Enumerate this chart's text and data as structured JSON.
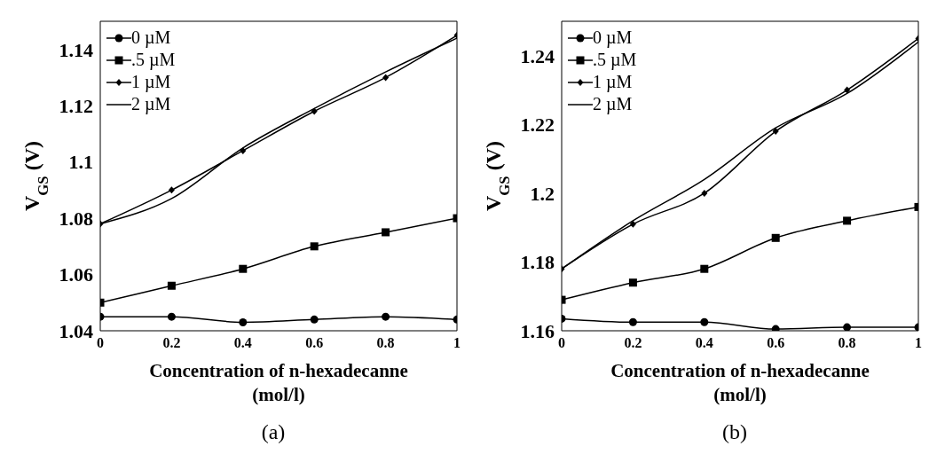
{
  "chart_data": [
    {
      "type": "line",
      "xlabel": "Concentration of n-hexadecanne (mol/l)",
      "ylabel": "V$_{GS}$ (V)",
      "annotations": [
        "(a)"
      ],
      "x": [
        0,
        0.2,
        0.4,
        0.6,
        0.8,
        1
      ],
      "xlim": [
        0,
        1
      ],
      "xticks": [
        0,
        0.2,
        0.4,
        0.6,
        0.8,
        1
      ],
      "ylim": [
        1.04,
        1.15
      ],
      "yticks": [
        1.04,
        1.06,
        1.08,
        {
          "value": 1.1,
          "label": "1.1"
        },
        1.12,
        1.14
      ],
      "grid": false,
      "legend": "top left",
      "line_style": "solid",
      "series": [
        {
          "name": "0 µM",
          "color": "#000000",
          "marker": "circle",
          "values": [
            1.045,
            1.045,
            1.043,
            1.044,
            1.045,
            1.044
          ]
        },
        {
          "name": ".5 µM",
          "color": "#000000",
          "marker": "square",
          "values": [
            1.05,
            1.056,
            1.062,
            1.07,
            1.075,
            1.08
          ]
        },
        {
          "name": "1 µM",
          "color": "#000000",
          "marker": "diamond",
          "values": [
            1.078,
            1.09,
            1.104,
            1.118,
            1.13,
            1.145
          ]
        },
        {
          "name": "2 µM",
          "color": "#000000",
          "marker": "none",
          "values": [
            1.078,
            1.087,
            1.105,
            1.119,
            1.132,
            1.144
          ]
        }
      ]
    },
    {
      "type": "line",
      "xlabel": "Concentration of n-hexadecanne (mol/l)",
      "ylabel": "V$_{GS}$ (V)",
      "annotations": [
        "(b)"
      ],
      "x": [
        0,
        0.2,
        0.4,
        0.6,
        0.8,
        1
      ],
      "xlim": [
        0,
        1
      ],
      "xticks": [
        0,
        0.2,
        0.4,
        0.6,
        0.8,
        1
      ],
      "ylim": [
        1.16,
        1.25
      ],
      "yticks": [
        1.16,
        1.18,
        {
          "value": 1.2,
          "label": "1.2"
        },
        1.22,
        1.24
      ],
      "grid": false,
      "legend": "top left",
      "line_style": "solid",
      "series": [
        {
          "name": "0 µM",
          "color": "#000000",
          "marker": "circle",
          "values": [
            1.1635,
            1.1625,
            1.1625,
            1.1605,
            1.161,
            1.161
          ]
        },
        {
          "name": ".5 µM",
          "color": "#000000",
          "marker": "square",
          "values": [
            1.169,
            1.174,
            1.178,
            1.187,
            1.192,
            1.196
          ]
        },
        {
          "name": "1 µM",
          "color": "#000000",
          "marker": "diamond",
          "values": [
            1.178,
            1.191,
            1.2,
            1.218,
            1.23,
            1.245
          ]
        },
        {
          "name": "2 µM",
          "color": "#000000",
          "marker": "none",
          "values": [
            1.178,
            1.192,
            1.204,
            1.219,
            1.229,
            1.244
          ]
        }
      ]
    }
  ]
}
